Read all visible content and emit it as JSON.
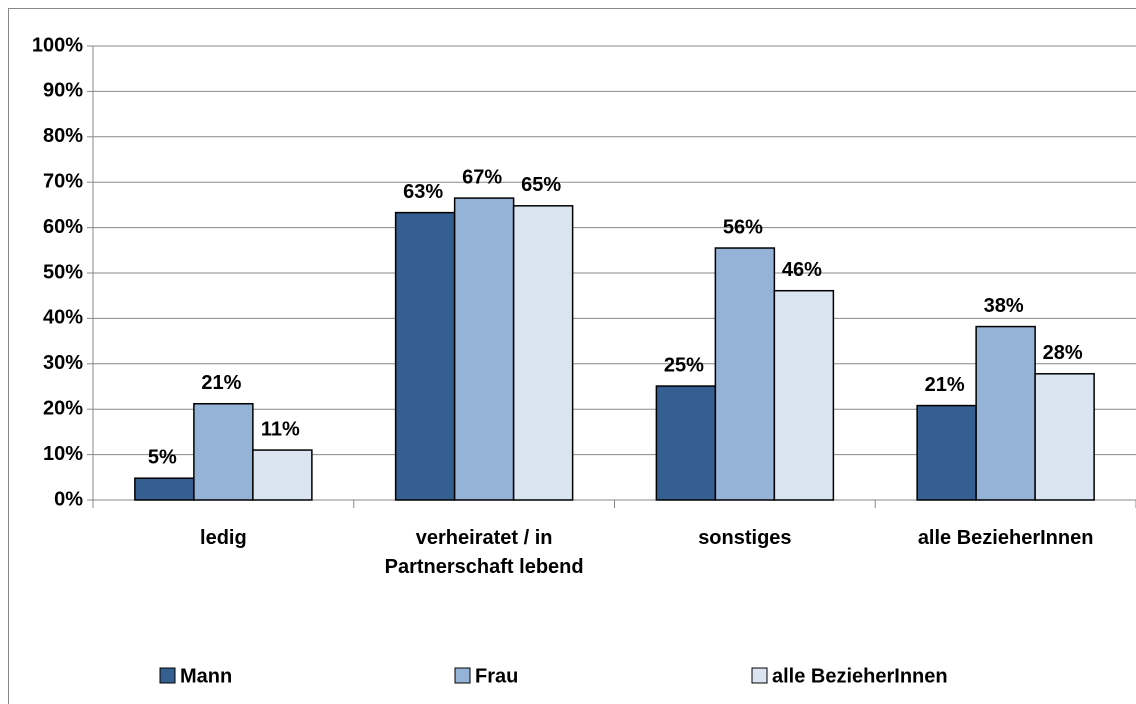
{
  "chart_data": {
    "type": "bar",
    "categories": [
      "ledig",
      "verheiratet / in Partnerschaft lebend",
      "sonstiges",
      "alle BezieherInnen"
    ],
    "series": [
      {
        "name": "Mann",
        "color": "#355f91",
        "values": [
          4.8,
          63.3,
          25.1,
          20.8
        ],
        "value_labels": [
          "5%",
          "63%",
          "25%",
          "21%"
        ]
      },
      {
        "name": "Frau",
        "color": "#95b3d7",
        "values": [
          21.2,
          66.5,
          55.5,
          38.2
        ],
        "value_labels": [
          "21%",
          "67%",
          "56%",
          "38%"
        ]
      },
      {
        "name": "alle BezieherInnen",
        "color": "#dbe5f1",
        "values": [
          11,
          64.8,
          46.1,
          27.8
        ],
        "value_labels": [
          "11%",
          "65%",
          "46%",
          "28%"
        ]
      }
    ],
    "ylim": [
      0,
      100
    ],
    "yticks": [
      {
        "value": 0,
        "label": "0%"
      },
      {
        "value": 10,
        "label": "10%"
      },
      {
        "value": 20,
        "label": "20%"
      },
      {
        "value": 30,
        "label": "30%"
      },
      {
        "value": 40,
        "label": "40%"
      },
      {
        "value": 50,
        "label": "50%"
      },
      {
        "value": 60,
        "label": "60%"
      },
      {
        "value": 70,
        "label": "70%"
      },
      {
        "value": 80,
        "label": "80%"
      },
      {
        "value": 90,
        "label": "90%"
      },
      {
        "value": 100,
        "label": "100%"
      }
    ],
    "grid": true,
    "legend": "bottom"
  }
}
